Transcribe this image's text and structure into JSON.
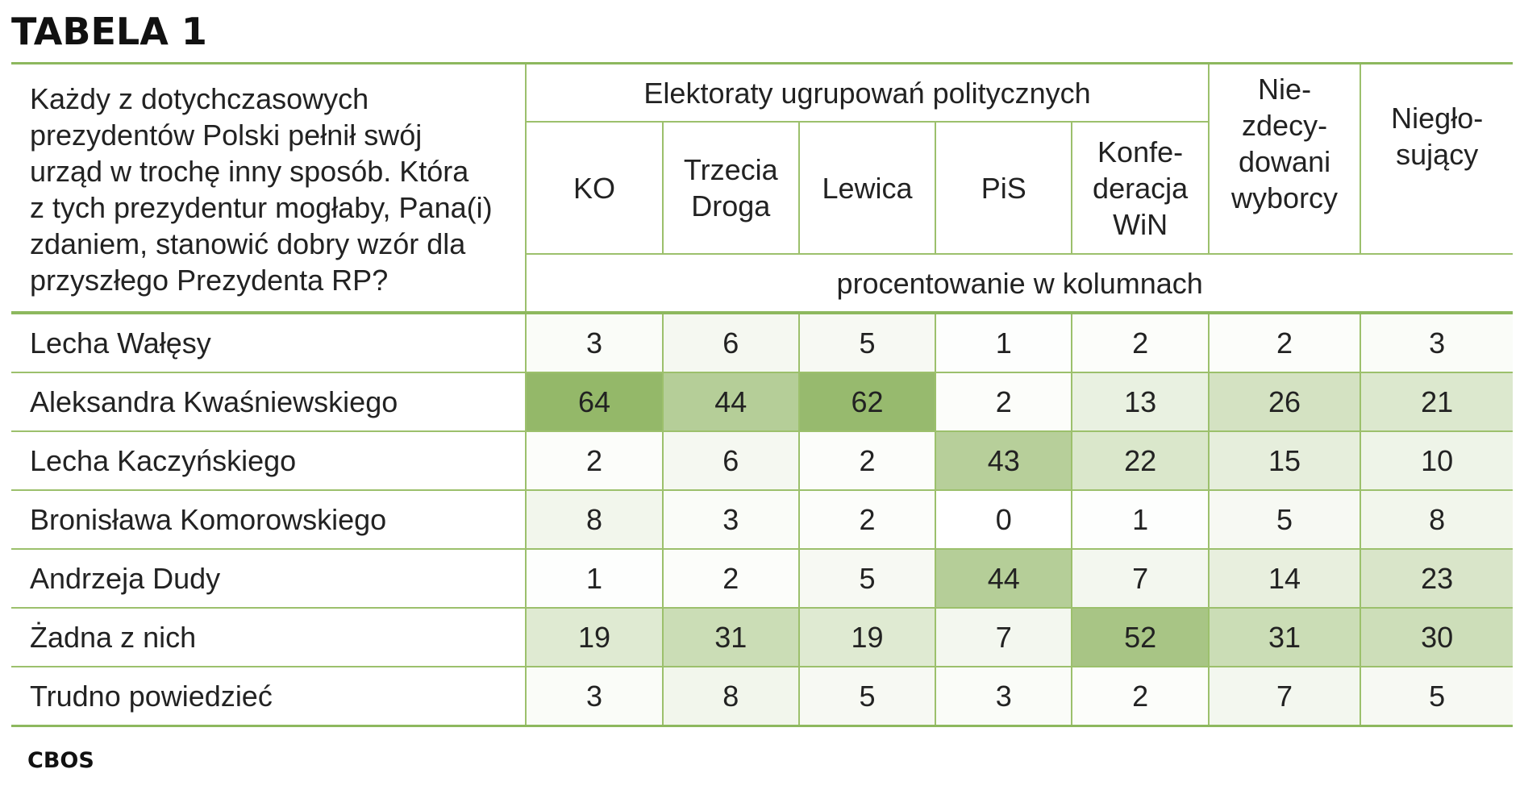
{
  "title": "TABELA 1",
  "question": "Każdy z dotychczasowych prezydentów Polski pełnił swój urząd w trochę inny sposób. Która z tych prezydentur mogłaby, Pana(i) zdaniem, stanowić dobry wzór dla przyszłego Prezydenta RP?",
  "question_lines": [
    "Każdy z dotychczasowych",
    "prezydentów Polski pełnił swój",
    "urząd w trochę inny sposób. Która",
    "z tych prezydentur mogłaby, Pana(i)",
    "zdaniem, stanowić dobry wzór dla",
    "przyszłego Prezydenta RP?"
  ],
  "group_header": "Elektoraty ugrupowań politycznych",
  "unit_note": "procentowanie w kolumnach",
  "columns": [
    {
      "lines": [
        "KO"
      ]
    },
    {
      "lines": [
        "Trzecia",
        "Droga"
      ]
    },
    {
      "lines": [
        "Lewica"
      ]
    },
    {
      "lines": [
        "PiS"
      ]
    },
    {
      "lines": [
        "Konfe-",
        "deracja",
        "WiN"
      ]
    },
    {
      "lines": [
        "Nie-",
        "zdecy-",
        "dowani",
        "wyborcy"
      ]
    },
    {
      "lines": [
        "Niegło-",
        "sujący"
      ]
    }
  ],
  "rows": [
    {
      "label": "Lecha Wałęsy",
      "values": [
        "3",
        "6",
        "5",
        "1",
        "2",
        "2",
        "3"
      ]
    },
    {
      "label": "Aleksandra Kwaśniewskiego",
      "values": [
        "64",
        "44",
        "62",
        "2",
        "13",
        "26",
        "21"
      ]
    },
    {
      "label": "Lecha Kaczyńskiego",
      "values": [
        "2",
        "6",
        "2",
        "43",
        "22",
        "15",
        "10"
      ]
    },
    {
      "label": "Bronisława Komorowskiego",
      "values": [
        "8",
        "3",
        "2",
        "0",
        "1",
        "5",
        "8"
      ]
    },
    {
      "label": "Andrzeja Dudy",
      "values": [
        "1",
        "2",
        "5",
        "44",
        "7",
        "14",
        "23"
      ]
    },
    {
      "label": "Żadna z nich",
      "values": [
        "19",
        "31",
        "19",
        "7",
        "52",
        "31",
        "30"
      ]
    },
    {
      "label": "Trudno powiedzieć",
      "values": [
        "3",
        "8",
        "5",
        "3",
        "2",
        "7",
        "5"
      ]
    }
  ],
  "source": "CBOS",
  "colors": {
    "border": "#9cc06c",
    "heat_max": "#94b869",
    "heat_min": "#ffffff"
  }
}
